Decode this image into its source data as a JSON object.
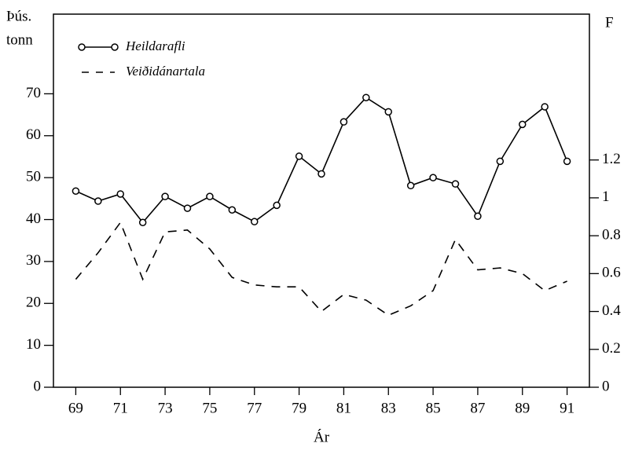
{
  "chart_data": {
    "type": "line",
    "ylabel": [
      "Þús.",
      "tonn"
    ],
    "y2label": "F",
    "xlabel": "Ár",
    "x": [
      69,
      70,
      71,
      72,
      73,
      74,
      75,
      76,
      77,
      78,
      79,
      80,
      81,
      82,
      83,
      84,
      85,
      86,
      87,
      88,
      89,
      90,
      91
    ],
    "series": [
      {
        "name": "Heildarafli",
        "color": "#000000",
        "style": "solid-circle",
        "axis": "y",
        "values": [
          46.8,
          44.4,
          46.1,
          39.3,
          45.5,
          42.7,
          45.5,
          42.3,
          39.5,
          43.4,
          55.1,
          50.9,
          63.3,
          69.1,
          65.7,
          48.1,
          50,
          48.5,
          40.8,
          53.9,
          62.7,
          66.9,
          53.9
        ]
      },
      {
        "name": "Veiðidánartala",
        "color": "#000000",
        "style": "dashed",
        "axis": "y2",
        "values": [
          0.57,
          0.71,
          0.87,
          0.57,
          0.82,
          0.83,
          0.73,
          0.58,
          0.54,
          0.53,
          0.53,
          0.4,
          0.49,
          0.46,
          0.38,
          0.43,
          0.51,
          0.78,
          0.62,
          0.63,
          0.6,
          0.51,
          0.56
        ]
      }
    ],
    "xlim": [
      68,
      92
    ],
    "xticks": [
      69,
      71,
      73,
      75,
      77,
      79,
      81,
      83,
      85,
      87,
      89,
      91
    ],
    "ylim": [
      0,
      89
    ],
    "yticks": [
      0,
      10,
      20,
      30,
      40,
      50,
      60,
      70
    ],
    "y2lim": [
      0,
      1.97
    ],
    "y2ticks": [
      0,
      0.2,
      0.4,
      0.6,
      0.8,
      1,
      1.2
    ],
    "legend": "upper left",
    "grid": false
  }
}
